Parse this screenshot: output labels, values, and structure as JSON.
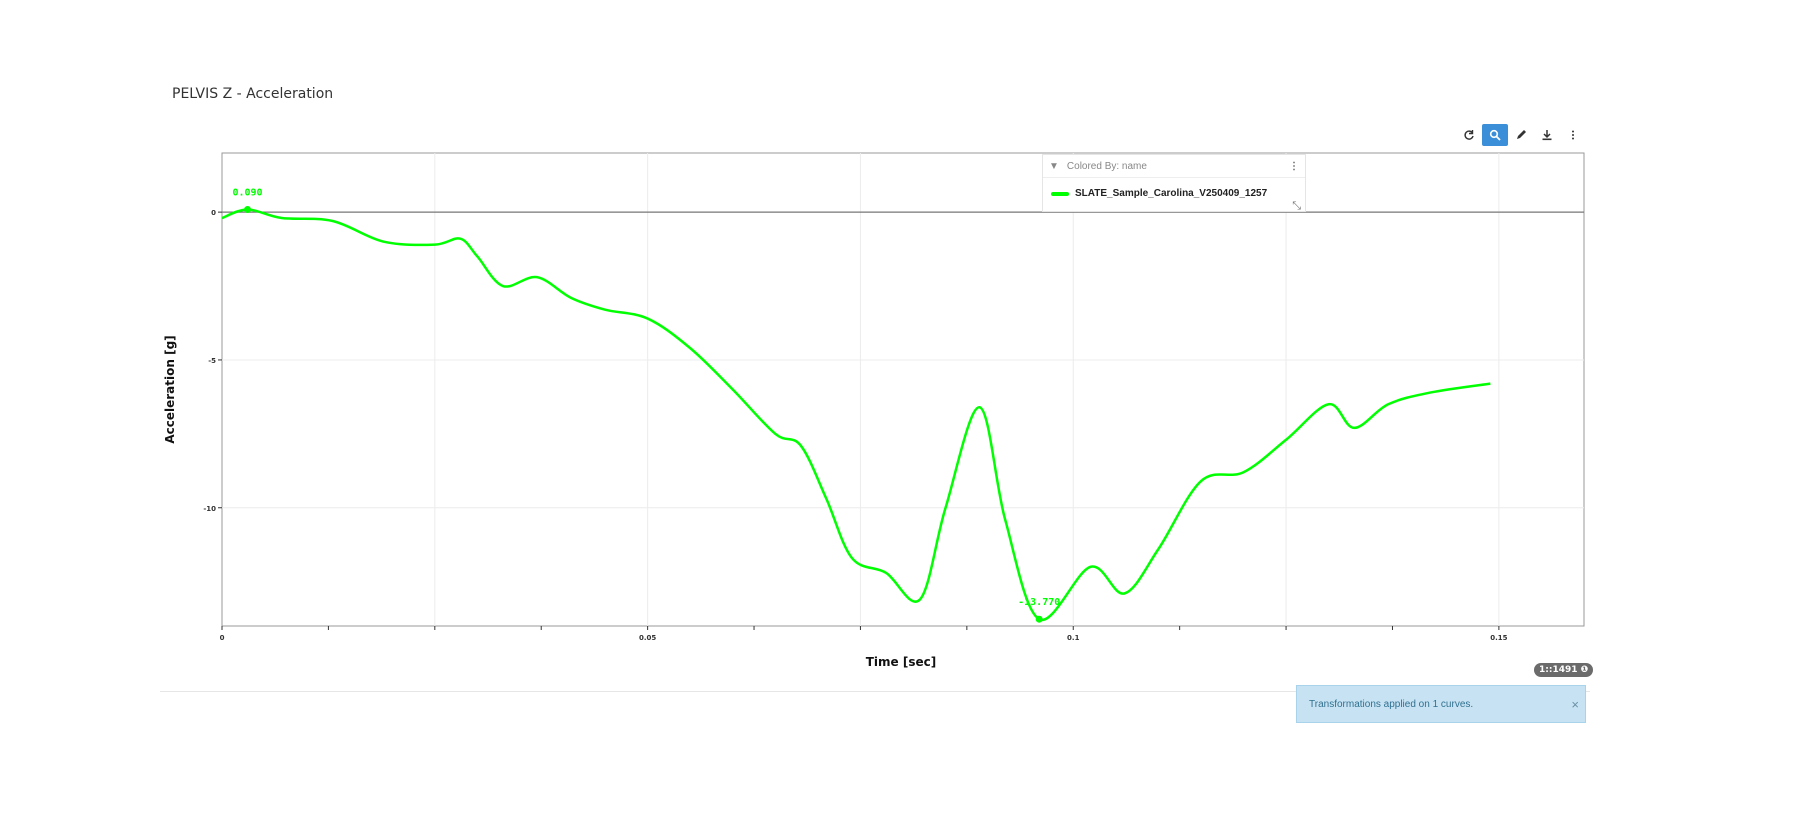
{
  "page_title": "PELVIS Z - Acceleration",
  "toolbar": {
    "buttons": [
      {
        "name": "refresh-icon",
        "active": false
      },
      {
        "name": "zoom-icon",
        "active": true
      },
      {
        "name": "pen-icon",
        "active": false
      },
      {
        "name": "download-icon",
        "active": false
      },
      {
        "name": "more-icon",
        "active": false
      }
    ]
  },
  "legend": {
    "header": "Colored By: name",
    "menu_glyph": "⋮",
    "entries": [
      {
        "name": "SLATE_Sample_Carolina_V250409_1257",
        "color": "#00ff00"
      }
    ]
  },
  "point_badge": "1::1491 ❶",
  "toast": {
    "message": "Transformations applied on 1 curves.",
    "close_glyph": "×"
  },
  "chart_data": {
    "type": "line",
    "xlabel": "Time [sec]",
    "ylabel": "Acceleration [g]",
    "xlim": [
      0,
      0.16
    ],
    "ylim": [
      -14,
      2
    ],
    "x_ticks": [
      0,
      0.05,
      0.1,
      0.15
    ],
    "x_tick_labels": [
      "0",
      "0.05",
      "0.1",
      "0.15"
    ],
    "y_ticks": [
      0,
      -5,
      -10
    ],
    "y_tick_labels": [
      "0",
      "-5",
      "-10"
    ],
    "grid": true,
    "legend_position": "top-right",
    "series": [
      {
        "name": "SLATE_Sample_Carolina_V250409_1257",
        "color": "#00ff00",
        "x": [
          0,
          0.003,
          0.007,
          0.013,
          0.019,
          0.025,
          0.028,
          0.03,
          0.033,
          0.037,
          0.041,
          0.045,
          0.05,
          0.055,
          0.06,
          0.065,
          0.068,
          0.071,
          0.074,
          0.078,
          0.082,
          0.085,
          0.089,
          0.092,
          0.096,
          0.102,
          0.106,
          0.11,
          0.115,
          0.12,
          0.125,
          0.13,
          0.133,
          0.137,
          0.142,
          0.149
        ],
        "y": [
          -0.2,
          0.09,
          -0.2,
          -0.3,
          -1.0,
          -1.1,
          -0.9,
          -1.5,
          -2.5,
          -2.2,
          -2.9,
          -3.3,
          -3.6,
          -4.6,
          -6.0,
          -7.5,
          -7.9,
          -9.7,
          -11.7,
          -12.2,
          -13.1,
          -10.0,
          -6.6,
          -10.4,
          -13.77,
          -12.0,
          -12.9,
          -11.4,
          -9.1,
          -8.8,
          -7.7,
          -6.5,
          -7.3,
          -6.5,
          -6.1,
          -5.8
        ]
      }
    ],
    "annotations": [
      {
        "label": "0.090",
        "x": 0.003,
        "y": 0.09
      },
      {
        "label": "-13.770",
        "x": 0.096,
        "y": -13.77
      }
    ]
  }
}
